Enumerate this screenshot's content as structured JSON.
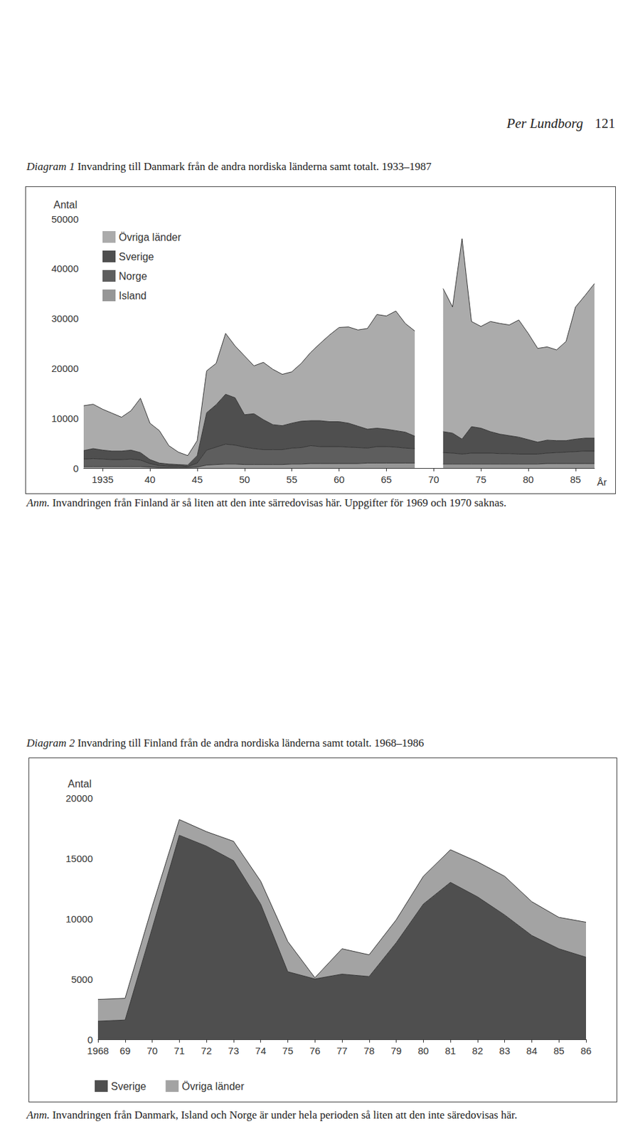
{
  "header": {
    "author": "Per Lundborg",
    "page": 121
  },
  "chart_data": [
    {
      "type": "area",
      "stacked": true,
      "label": "Diagram 1",
      "title": "Invandring till Danmark från de andra nordiska länderna samt totalt. 1933–1987",
      "note_label": "Anm.",
      "note": "Invandringen från Finland är så liten att den inte särredovisas här. Uppgifter för 1969 och 1970 saknas.",
      "y_label": "Antal",
      "x_label": "År",
      "categories": [
        null,
        null,
        "1935",
        null,
        null,
        null,
        null,
        "40",
        null,
        null,
        null,
        null,
        "45",
        null,
        null,
        null,
        null,
        "50",
        null,
        null,
        null,
        null,
        "55",
        null,
        null,
        null,
        null,
        "60",
        null,
        null,
        null,
        null,
        "65",
        null,
        null,
        null,
        null,
        "70",
        null,
        null,
        null,
        null,
        "75",
        null,
        null,
        null,
        null,
        "80",
        null,
        null,
        null,
        null,
        "85",
        null,
        null
      ],
      "ylim": [
        0,
        50000
      ],
      "yticks": [
        0,
        10000,
        20000,
        30000,
        40000,
        50000
      ],
      "grid": false,
      "legend": "upper left",
      "series": [
        {
          "name": "Island",
          "color": "#969696",
          "values": [
            300,
            300,
            300,
            300,
            300,
            300,
            300,
            200,
            100,
            100,
            100,
            100,
            200,
            600,
            700,
            800,
            800,
            700,
            700,
            700,
            700,
            700,
            800,
            800,
            900,
            900,
            900,
            900,
            900,
            900,
            1000,
            1000,
            1000,
            1000,
            1000,
            1000,
            null,
            null,
            800,
            800,
            800,
            800,
            800,
            800,
            800,
            800,
            800,
            800,
            800,
            900,
            900,
            900,
            900,
            900,
            900
          ]
        },
        {
          "name": "Norge",
          "color": "#5e5e5e",
          "values": [
            1500,
            1600,
            1500,
            1400,
            1400,
            1500,
            1300,
            700,
            400,
            300,
            300,
            200,
            800,
            3000,
            3500,
            4000,
            3800,
            3500,
            3200,
            3000,
            3000,
            3000,
            3200,
            3300,
            3600,
            3400,
            3400,
            3400,
            3300,
            3200,
            3000,
            3300,
            3300,
            3200,
            3000,
            2900,
            null,
            null,
            2300,
            2200,
            2000,
            2200,
            2200,
            2200,
            2100,
            2100,
            2000,
            2000,
            2000,
            2100,
            2200,
            2300,
            2400,
            2500,
            2500
          ]
        },
        {
          "name": "Sverige",
          "color": "#4f4f4f",
          "values": [
            1700,
            2000,
            1800,
            1700,
            1700,
            1800,
            1500,
            800,
            500,
            400,
            300,
            300,
            1500,
            7500,
            8500,
            10000,
            9500,
            6500,
            7000,
            6000,
            5000,
            4800,
            5000,
            5300,
            5000,
            5200,
            5000,
            5000,
            4800,
            4300,
            3800,
            3700,
            3500,
            3300,
            3200,
            2500,
            null,
            null,
            4200,
            4000,
            3000,
            5300,
            5000,
            4300,
            3900,
            3600,
            3400,
            2900,
            2400,
            2600,
            2400,
            2300,
            2500,
            2600,
            2600
          ]
        },
        {
          "name": "Övriga länder",
          "color": "#ababab",
          "values": [
            9000,
            8900,
            8200,
            7600,
            6800,
            7900,
            10900,
            7300,
            6500,
            3700,
            2500,
            1900,
            3000,
            8400,
            8300,
            12200,
            10400,
            11800,
            9600,
            11500,
            11100,
            10300,
            10300,
            11600,
            13700,
            15500,
            17400,
            18900,
            19300,
            19300,
            20200,
            22800,
            22700,
            24000,
            21800,
            21100,
            null,
            null,
            28700,
            25300,
            40200,
            21100,
            20400,
            22100,
            22200,
            22200,
            23500,
            21300,
            18800,
            18700,
            18200,
            19900,
            26500,
            28600,
            31000
          ]
        }
      ]
    },
    {
      "type": "area",
      "stacked": true,
      "label": "Diagram 2",
      "title": "Invandring till Finland från de andra nordiska länderna samt totalt. 1968–1986",
      "note_label": "Anm.",
      "note": "Invandringen från Danmark, Island och Norge är under hela perioden så liten att den inte säredovisas här.",
      "y_label": "Antal",
      "categories": [
        "1968",
        "69",
        "70",
        "71",
        "72",
        "73",
        "74",
        "75",
        "76",
        "77",
        "78",
        "79",
        "80",
        "81",
        "82",
        "83",
        "84",
        "85",
        "86"
      ],
      "ylim": [
        0,
        20000
      ],
      "yticks": [
        0,
        5000,
        10000,
        15000,
        20000
      ],
      "grid": false,
      "legend": "bottom",
      "series": [
        {
          "name": "Sverige",
          "color": "#4f4f4f",
          "values": [
            1500,
            1600,
            9200,
            16900,
            16000,
            14800,
            11200,
            5600,
            5000,
            5400,
            5200,
            8000,
            11200,
            13000,
            11800,
            10300,
            8600,
            7500,
            6800
          ]
        },
        {
          "name": "Övriga länder",
          "color": "#a3a3a3",
          "values": [
            1800,
            1800,
            1800,
            1300,
            1200,
            1600,
            1900,
            2500,
            100,
            2100,
            1800,
            1900,
            2300,
            2700,
            2900,
            3200,
            2800,
            2600,
            2900
          ]
        }
      ]
    }
  ]
}
